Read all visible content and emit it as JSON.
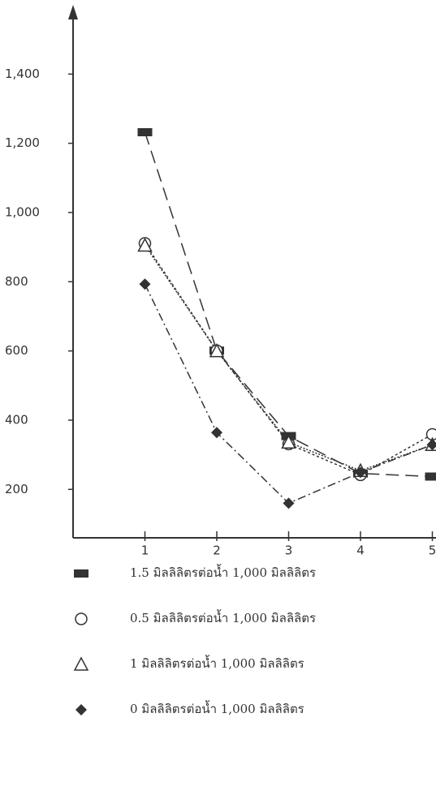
{
  "chart_data": {
    "type": "line",
    "x": [
      1,
      2,
      3,
      4,
      5
    ],
    "xlim": [
      0,
      5.05
    ],
    "xticks": [
      1,
      2,
      3,
      4,
      5
    ],
    "ylim": [
      60,
      1600
    ],
    "yticks": [
      {
        "value": 200,
        "label": "200"
      },
      {
        "value": 400,
        "label": "400"
      },
      {
        "value": 600,
        "label": "600"
      },
      {
        "value": 800,
        "label": "800"
      },
      {
        "value": 1000,
        "label": "1,000"
      },
      {
        "value": 1200,
        "label": "1,200"
      },
      {
        "value": 1400,
        "label": "1,400"
      }
    ],
    "series": [
      {
        "name": "1.5 มิลลิลิตรต่อน้ำ 1,000 มิลลิลิตร",
        "color": "#333333",
        "marker": "square",
        "values": [
          1232,
          601,
          354,
          246,
          237
        ]
      },
      {
        "name": "0.5 มิลลิลิตรต่อน้ำ 1,000 มิลลิลิตร",
        "color": "#333333",
        "marker": "circle",
        "values": [
          911,
          601,
          331,
          242,
          359
        ]
      },
      {
        "name": "1 มิลลิลิตรต่อน้ำ 1,000 มิลลิลิตร",
        "color": "#333333",
        "marker": "triangle",
        "values": [
          905,
          600,
          336,
          254,
          329
        ]
      },
      {
        "name": "0 มิลลิลิตรต่อน้ำ 1,000 มิลลิลิตร",
        "color": "#333333",
        "marker": "diamond",
        "values": [
          793,
          364,
          160,
          249,
          329
        ]
      }
    ]
  }
}
